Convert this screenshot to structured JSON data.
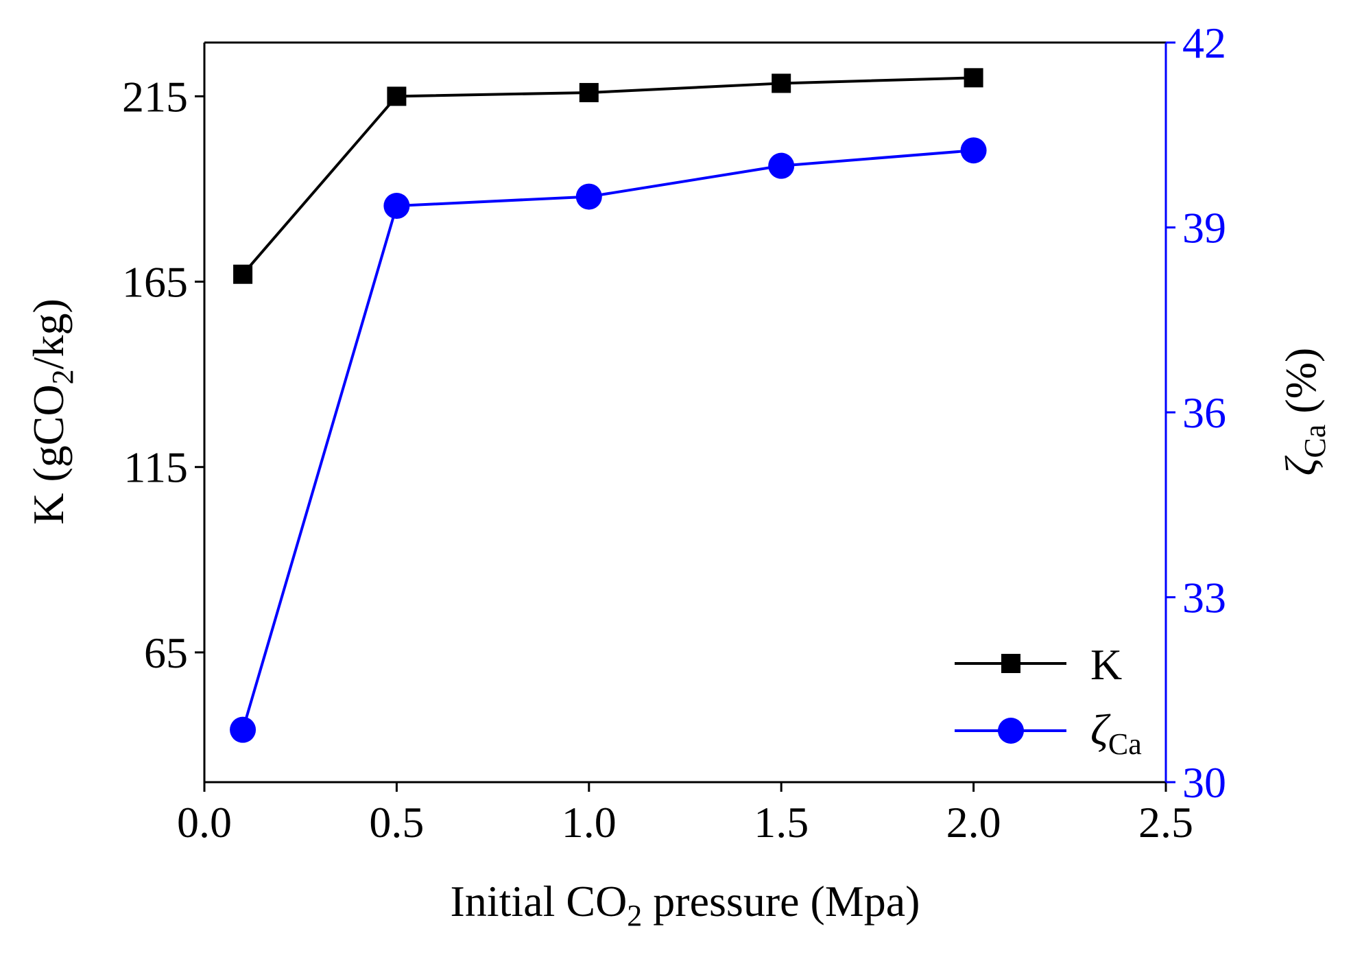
{
  "chart_data": {
    "type": "line",
    "xlabel": {
      "prefix": "Initial CO",
      "subscript": "2",
      "suffix": " pressure (Mpa)"
    },
    "ylabel_left": {
      "prefix": "K (gCO",
      "subscript": "2",
      "suffix": "/kg)"
    },
    "ylabel_right": {
      "symbol": "ζ",
      "subscript": "Ca",
      "suffix": " (%)"
    },
    "xlim": [
      0.0,
      2.5
    ],
    "ylim_left": [
      30,
      229.5
    ],
    "ylim_right": [
      30,
      42
    ],
    "x_ticks": [
      "0.0",
      "0.5",
      "1.0",
      "1.5",
      "2.0",
      "2.5"
    ],
    "y_ticks_left": [
      "65",
      "115",
      "165",
      "215"
    ],
    "y_ticks_right": [
      "30",
      "33",
      "36",
      "39",
      "42"
    ],
    "series": [
      {
        "name": "K",
        "axis": "left",
        "marker": "square",
        "color": "#000000",
        "x": [
          0.1,
          0.5,
          1.0,
          1.5,
          2.0
        ],
        "values": [
          167,
          215,
          216,
          218.5,
          220
        ]
      },
      {
        "name": "ζCa",
        "axis": "right",
        "marker": "circle",
        "color": "#0000ff",
        "x": [
          0.1,
          0.5,
          1.0,
          1.5,
          2.0
        ],
        "values": [
          30.85,
          39.35,
          39.5,
          40.0,
          40.25
        ]
      }
    ],
    "legend": {
      "position": "bottom-right",
      "items": [
        {
          "symbol": "K",
          "subscript": ""
        },
        {
          "symbol": "ζ",
          "subscript": "Ca"
        }
      ]
    },
    "colors": {
      "left_axis": "#000000",
      "right_axis": "#0000ff"
    },
    "grid": false
  }
}
